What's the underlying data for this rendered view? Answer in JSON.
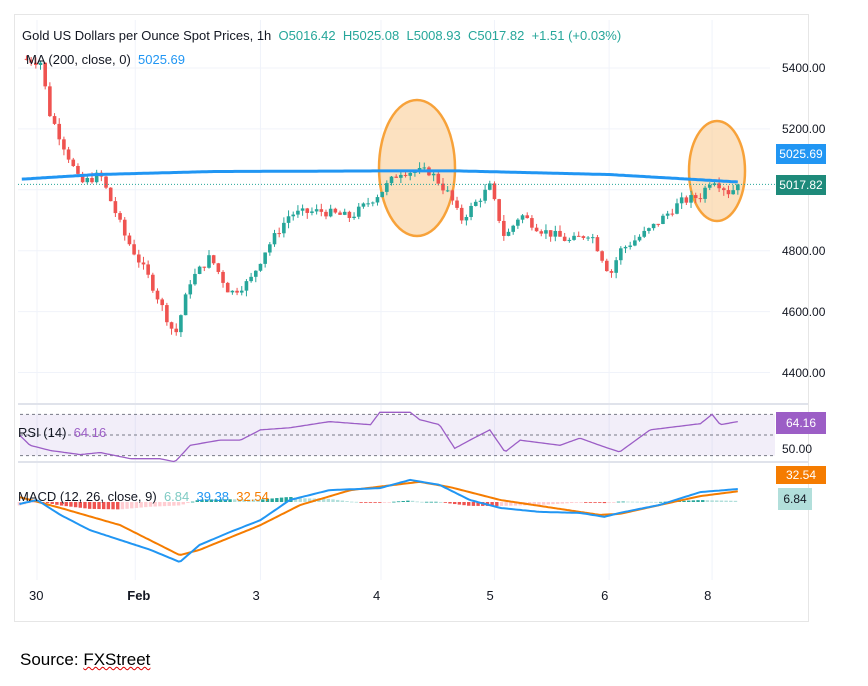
{
  "chart_data": {
    "type": "candlestick",
    "title": "Gold US Dollars per Ounce Spot Prices, 1h",
    "ohlc": {
      "open": "O5016.42",
      "high": "H5025.08",
      "low": "L5008.93",
      "close": "C5017.82",
      "change": "+1.51 (+0.03%)"
    },
    "ma_label": "MA (200, close, 0)",
    "ma_value": "5025.69",
    "price_ticks": [
      "5400.00",
      "5200.00",
      "4800.00",
      "4600.00",
      "4400.00"
    ],
    "price_tick_values": [
      5400,
      5200,
      4800,
      4600,
      4400
    ],
    "x_ticks": [
      {
        "label": "30",
        "day": 0
      },
      {
        "label": "Feb",
        "day": 0.84
      },
      {
        "label": "3",
        "day": 1.91
      },
      {
        "label": "4",
        "day": 2.94
      },
      {
        "label": "5",
        "day": 3.91
      },
      {
        "label": "6",
        "day": 4.89
      },
      {
        "label": "8",
        "day": 5.77
      }
    ],
    "price_path": [
      [
        -0.13,
        5430
      ],
      [
        0.03,
        5420
      ],
      [
        0.11,
        5250
      ],
      [
        0.37,
        5020
      ],
      [
        0.54,
        5050
      ],
      [
        0.75,
        4850
      ],
      [
        0.97,
        4700
      ],
      [
        1.18,
        4520
      ],
      [
        1.31,
        4700
      ],
      [
        1.48,
        4780
      ],
      [
        1.65,
        4660
      ],
      [
        1.82,
        4700
      ],
      [
        1.95,
        4800
      ],
      [
        2.16,
        4920
      ],
      [
        2.42,
        4930
      ],
      [
        2.68,
        4910
      ],
      [
        2.93,
        4990
      ],
      [
        3.1,
        5060
      ],
      [
        3.36,
        5060
      ],
      [
        3.53,
        4980
      ],
      [
        3.62,
        4900
      ],
      [
        3.87,
        5010
      ],
      [
        4.0,
        4840
      ],
      [
        4.13,
        4920
      ],
      [
        4.3,
        4870
      ],
      [
        4.56,
        4830
      ],
      [
        4.73,
        4860
      ],
      [
        4.9,
        4720
      ],
      [
        4.98,
        4800
      ],
      [
        5.24,
        4870
      ],
      [
        5.5,
        4960
      ],
      [
        5.67,
        4980
      ],
      [
        5.77,
        5040
      ],
      [
        5.92,
        4990
      ],
      [
        5.99,
        5017.82
      ]
    ],
    "ma_path": [
      [
        -0.13,
        5035
      ],
      [
        0.5,
        5050
      ],
      [
        1.5,
        5060
      ],
      [
        2.93,
        5062
      ],
      [
        3.6,
        5062
      ],
      [
        4.9,
        5050
      ],
      [
        5.99,
        5025.69
      ]
    ],
    "current_price": "5017.82",
    "rsi_label": "RSI (14)",
    "rsi_value": "64.16",
    "rsi_mid_label": "50.00",
    "rsi_path": [
      [
        -0.15,
        50
      ],
      [
        -0.06,
        40
      ],
      [
        0.11,
        35
      ],
      [
        0.37,
        31
      ],
      [
        0.54,
        33
      ],
      [
        0.8,
        27
      ],
      [
        1.05,
        27
      ],
      [
        1.18,
        24
      ],
      [
        1.31,
        40
      ],
      [
        1.56,
        45
      ],
      [
        1.74,
        45
      ],
      [
        1.91,
        55
      ],
      [
        2.16,
        57
      ],
      [
        2.5,
        63
      ],
      [
        2.85,
        60
      ],
      [
        2.93,
        72
      ],
      [
        3.19,
        72
      ],
      [
        3.27,
        65
      ],
      [
        3.44,
        60
      ],
      [
        3.57,
        37
      ],
      [
        3.7,
        45
      ],
      [
        3.87,
        55
      ],
      [
        4.0,
        33.5
      ],
      [
        4.13,
        45
      ],
      [
        4.47,
        40
      ],
      [
        4.64,
        47
      ],
      [
        4.81,
        40
      ],
      [
        4.98,
        33.5
      ],
      [
        5.24,
        55
      ],
      [
        5.67,
        61
      ],
      [
        5.77,
        70
      ],
      [
        5.84,
        60
      ],
      [
        5.99,
        63
      ]
    ],
    "macd_label": "MACD (12, 26, close, 9)",
    "macd_hist": "6.84",
    "macd_value": "39.38",
    "macd_signal": "32.54",
    "macd_path": [
      [
        -0.15,
        -6
      ],
      [
        0,
        6
      ],
      [
        0.2,
        -39
      ],
      [
        0.45,
        -85
      ],
      [
        0.71,
        -115
      ],
      [
        0.97,
        -145
      ],
      [
        1.22,
        -182
      ],
      [
        1.39,
        -130
      ],
      [
        1.65,
        -91
      ],
      [
        1.91,
        -55
      ],
      [
        2.16,
        6
      ],
      [
        2.5,
        36
      ],
      [
        2.93,
        42
      ],
      [
        3.19,
        67
      ],
      [
        3.44,
        52
      ],
      [
        3.7,
        6
      ],
      [
        3.96,
        -18
      ],
      [
        4.3,
        -30
      ],
      [
        4.64,
        -33
      ],
      [
        4.85,
        -45
      ],
      [
        4.98,
        -33
      ],
      [
        5.32,
        -9
      ],
      [
        5.67,
        30
      ],
      [
        5.99,
        39.38
      ]
    ],
    "signal_path": [
      [
        -0.15,
        15
      ],
      [
        0.2,
        -18
      ],
      [
        0.71,
        -70
      ],
      [
        1.22,
        -161
      ],
      [
        1.39,
        -145
      ],
      [
        1.91,
        -70
      ],
      [
        2.25,
        -9
      ],
      [
        2.68,
        36
      ],
      [
        3.27,
        61
      ],
      [
        3.53,
        45
      ],
      [
        3.96,
        6
      ],
      [
        4.81,
        -39
      ],
      [
        4.98,
        -36
      ],
      [
        5.67,
        18
      ],
      [
        5.99,
        32.54
      ]
    ]
  },
  "colors": {
    "up": "#26a69a",
    "down": "#ef5350",
    "ma": "#2196f3",
    "rsi": "#9c5ec6",
    "macd": "#2196f3",
    "signal": "#f57c00",
    "circle": "#f7a23a"
  },
  "source": {
    "prefix": "Source: ",
    "name": "FXStreet"
  }
}
